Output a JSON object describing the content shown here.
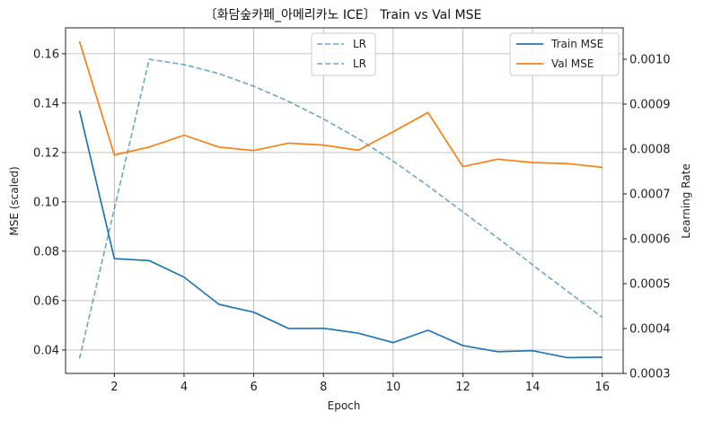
{
  "chart_data": {
    "type": "line",
    "title": "〔화담숲카페_아메리카노 ICE〕 Train vs Val MSE",
    "xlabel": "Epoch",
    "ylabel": "MSE (scaled)",
    "y2label": "Learning Rate",
    "x": [
      1,
      2,
      3,
      4,
      5,
      6,
      7,
      8,
      9,
      10,
      11,
      12,
      13,
      14,
      15,
      16
    ],
    "xlim": [
      0.6,
      16.6
    ],
    "ylim": [
      0.0305,
      0.1705
    ],
    "y2lim": [
      0.0003,
      0.00107
    ],
    "xticks": [
      "2",
      "4",
      "6",
      "8",
      "10",
      "12",
      "14",
      "16"
    ],
    "yticks": [
      "0.04",
      "0.06",
      "0.08",
      "0.10",
      "0.12",
      "0.14",
      "0.16"
    ],
    "y2ticks": [
      "0.0003",
      "0.0004",
      "0.0005",
      "0.0006",
      "0.0007",
      "0.0008",
      "0.0009",
      "0.0010"
    ],
    "grid": true,
    "series": [
      {
        "name": "Train MSE",
        "axis": "left",
        "color": "#1f77b4",
        "style": "solid",
        "values": [
          0.137,
          0.077,
          0.0762,
          0.0695,
          0.0585,
          0.0553,
          0.0487,
          0.0488,
          0.0468,
          0.043,
          0.048,
          0.0418,
          0.0393,
          0.0397,
          0.0369,
          0.0371
        ]
      },
      {
        "name": "Val MSE",
        "axis": "left",
        "color": "#ff7f0e",
        "style": "solid",
        "values": [
          0.165,
          0.119,
          0.1222,
          0.127,
          0.1222,
          0.1208,
          0.1238,
          0.123,
          0.1209,
          0.1284,
          0.1362,
          0.1143,
          0.1173,
          0.1159,
          0.1155,
          0.114
        ]
      },
      {
        "name": "LR",
        "axis": "right",
        "color": "#1f77b4",
        "style": "dashed",
        "values": [
          0.000333,
          0.000667,
          0.001,
          0.000988,
          0.000968,
          0.00094,
          0.000906,
          0.000867,
          0.000823,
          0.000773,
          0.000718,
          0.00066,
          0.000602,
          0.000542,
          0.000483,
          0.000425
        ]
      }
    ],
    "legends": [
      {
        "placement": "top-center",
        "entries": [
          "LR",
          "LR"
        ]
      },
      {
        "placement": "top-right",
        "entries": [
          "Train MSE",
          "Val MSE"
        ]
      }
    ]
  }
}
